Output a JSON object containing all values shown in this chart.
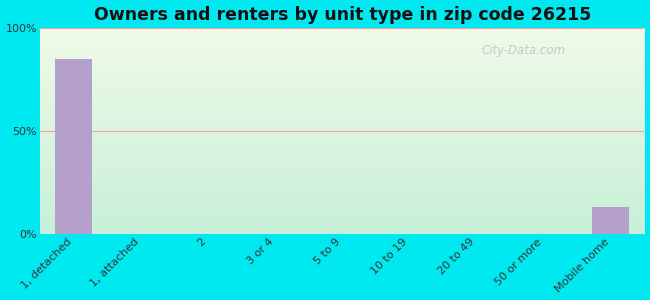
{
  "title": "Owners and renters by unit type in zip code 26215",
  "categories": [
    "1, detached",
    "1, attached",
    "2",
    "3 or 4",
    "5 to 9",
    "10 to 19",
    "20 to 49",
    "50 or more",
    "Mobile home"
  ],
  "values": [
    85,
    0,
    0,
    0,
    0,
    0,
    0,
    0,
    13
  ],
  "bar_color": "#b5a0cc",
  "background_outer": "#00e8f0",
  "background_inner_top": "#f0fae8",
  "background_inner_bottom": "#d0f0e0",
  "grid_color": "#f0a0a0",
  "tick_label_color": "#333333",
  "title_color": "#111111",
  "ylabel_ticks": [
    "0%",
    "50%",
    "100%"
  ],
  "ylabel_vals": [
    0,
    50,
    100
  ],
  "ylim": [
    0,
    100
  ],
  "bar_width": 0.55,
  "title_fontsize": 12.5,
  "tick_fontsize": 8,
  "watermark_text": "City-Data.com",
  "watermark_color": "#b0b8c0",
  "watermark_alpha": 0.7
}
